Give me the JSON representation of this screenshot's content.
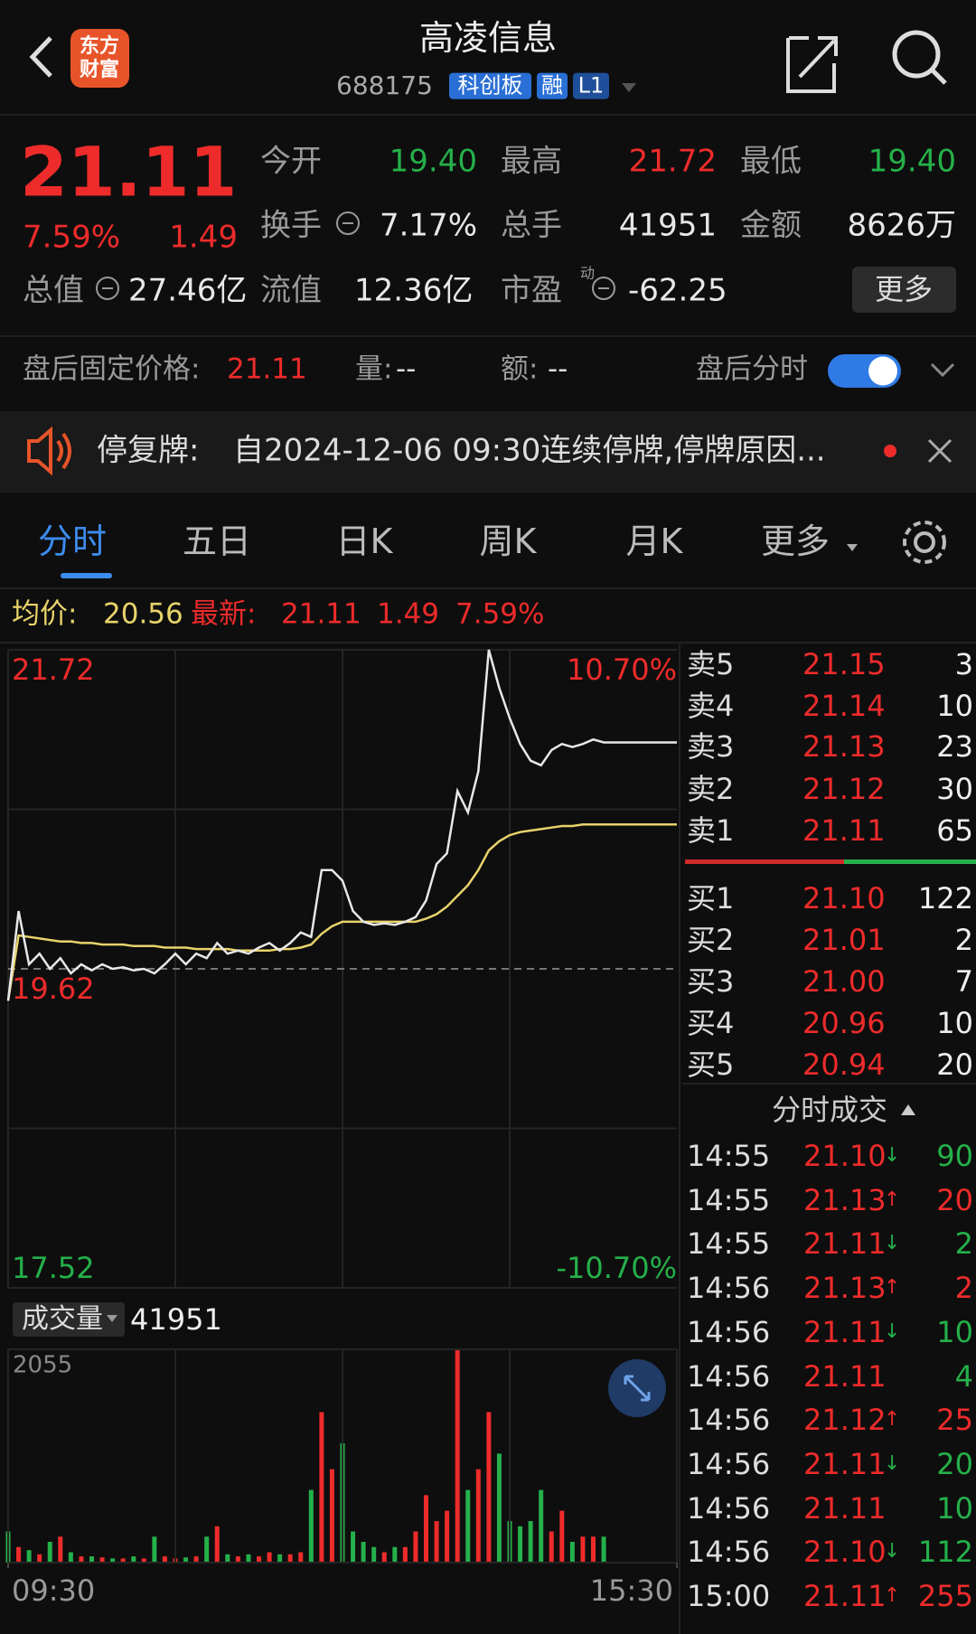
{
  "header": {
    "logo": [
      "东方",
      "财富"
    ],
    "title": "高凌信息",
    "code": "688175",
    "tags": [
      "科创板",
      "融",
      "L1"
    ]
  },
  "quote": {
    "price": "21.11",
    "change_pct": "7.59%",
    "change": "1.49",
    "rows": [
      [
        {
          "label": "今开",
          "value": "19.40",
          "color": "#25b04a"
        },
        {
          "label": "最高",
          "value": "21.72",
          "color": "#ee2b2b"
        },
        {
          "label": "最低",
          "value": "19.40",
          "color": "#25b04a"
        }
      ],
      [
        {
          "label": "换手",
          "value": "7.17%"
        },
        {
          "label": "总手",
          "value": "41951"
        },
        {
          "label": "金额",
          "value": "8626万"
        }
      ],
      [
        {
          "label": "总值",
          "value": "27.46亿"
        },
        {
          "label": "流值",
          "value": "12.36亿"
        },
        {
          "label": "市盈",
          "label_sup": "动",
          "value": "-62.25"
        }
      ]
    ],
    "more": "更多"
  },
  "after_hours": {
    "label": "盘后固定价格:",
    "price": "21.11",
    "volume_label": "量:",
    "volume": "--",
    "amount_label": "额:",
    "amount": "--",
    "toggle_label": "盘后分时"
  },
  "notice": {
    "label": "停复牌:",
    "text": "自2024-12-06 09:30连续停牌,停牌原因..."
  },
  "tabs": [
    "分时",
    "五日",
    "日K",
    "周K",
    "月K",
    "更多"
  ],
  "summary": {
    "avg": "20.56",
    "latest": "21.11",
    "change": "1.49",
    "change_pct": "7.59%"
  },
  "chart_data": [
    {
      "type": "line",
      "ylim": [
        17.52,
        21.72
      ],
      "yticks": [
        17.52,
        19.62,
        21.72
      ],
      "y2lim": [
        -10.7,
        10.7
      ],
      "y2ticks": [
        {
          "value": -10.7,
          "label": "-10.70%"
        },
        {
          "value": 10.7,
          "label": "10.70%"
        }
      ],
      "xlim": [
        0,
        64
      ],
      "series": [
        {
          "name": "最新:",
          "color": "#e8e8e8",
          "values": [
            19.41,
            20.0,
            19.65,
            19.72,
            19.62,
            19.69,
            19.59,
            19.65,
            19.61,
            19.65,
            19.62,
            19.63,
            19.61,
            19.62,
            19.59,
            19.65,
            19.72,
            19.65,
            19.72,
            19.69,
            19.79,
            19.72,
            19.74,
            19.72,
            19.76,
            19.79,
            19.74,
            19.79,
            19.86,
            19.83,
            20.27,
            20.27,
            20.2,
            20.0,
            19.93,
            19.91,
            19.92,
            19.91,
            19.93,
            19.96,
            20.07,
            20.31,
            20.38,
            20.79,
            20.65,
            20.92,
            21.72,
            21.47,
            21.27,
            21.1,
            20.99,
            20.96,
            21.06,
            21.1,
            21.08,
            21.1,
            21.13,
            21.11,
            21.11,
            21.11,
            21.11,
            21.11,
            21.11,
            21.11,
            21.11
          ]
        },
        {
          "name": "均价:",
          "color": "#e8d36b",
          "values": [
            19.41,
            19.84,
            19.83,
            19.82,
            19.81,
            19.8,
            19.8,
            19.79,
            19.79,
            19.78,
            19.78,
            19.78,
            19.77,
            19.77,
            19.77,
            19.76,
            19.76,
            19.76,
            19.75,
            19.75,
            19.75,
            19.75,
            19.74,
            19.74,
            19.74,
            19.74,
            19.75,
            19.75,
            19.76,
            19.78,
            19.85,
            19.9,
            19.93,
            19.93,
            19.93,
            19.93,
            19.93,
            19.93,
            19.93,
            19.93,
            19.95,
            19.98,
            20.03,
            20.1,
            20.17,
            20.27,
            20.4,
            20.46,
            20.5,
            20.52,
            20.53,
            20.54,
            20.55,
            20.56,
            20.56,
            20.57,
            20.57,
            20.57,
            20.57,
            20.57,
            20.57,
            20.57,
            20.57,
            20.57,
            20.57
          ]
        }
      ]
    },
    {
      "type": "bar",
      "title": "成交量",
      "total": "41951",
      "ylim": [
        0,
        2055
      ],
      "yticks": [
        2055
      ],
      "xlim": [
        0,
        64
      ],
      "xticks": [
        {
          "value": 0,
          "label": "09:30"
        },
        {
          "value": 64,
          "label": "15:30"
        }
      ],
      "up_color": "#ee2b2b",
      "down_color": "#25b04a",
      "values": [
        300,
        150,
        120,
        80,
        200,
        250,
        100,
        60,
        60,
        50,
        40,
        40,
        60,
        40,
        250,
        60,
        40,
        50,
        60,
        250,
        350,
        80,
        60,
        80,
        60,
        100,
        80,
        80,
        100,
        700,
        1450,
        900,
        1150,
        300,
        200,
        150,
        100,
        150,
        150,
        300,
        650,
        400,
        500,
        2055,
        700,
        900,
        1450,
        1050,
        400,
        350,
        400,
        700,
        300,
        500,
        200,
        250,
        250,
        250
      ]
    }
  ],
  "order_book": {
    "asks": [
      {
        "label": "卖5",
        "price": "21.15",
        "volume": "3"
      },
      {
        "label": "卖4",
        "price": "21.14",
        "volume": "10"
      },
      {
        "label": "卖3",
        "price": "21.13",
        "volume": "23"
      },
      {
        "label": "卖2",
        "price": "21.12",
        "volume": "30"
      },
      {
        "label": "卖1",
        "price": "21.11",
        "volume": "65"
      }
    ],
    "bids": [
      {
        "label": "买1",
        "price": "21.10",
        "volume": "122"
      },
      {
        "label": "买2",
        "price": "21.01",
        "volume": "2"
      },
      {
        "label": "买3",
        "price": "21.00",
        "volume": "7"
      },
      {
        "label": "买4",
        "price": "20.96",
        "volume": "10"
      },
      {
        "label": "买5",
        "price": "20.94",
        "volume": "20"
      }
    ]
  },
  "trades": {
    "title": "分时成交",
    "rows": [
      {
        "time": "14:55",
        "price": "21.10",
        "dir": "↓",
        "volume": "90"
      },
      {
        "time": "14:55",
        "price": "21.13",
        "dir": "↑",
        "volume": "20"
      },
      {
        "time": "14:55",
        "price": "21.11",
        "dir": "↓",
        "volume": "2"
      },
      {
        "time": "14:56",
        "price": "21.13",
        "dir": "↑",
        "volume": "2"
      },
      {
        "time": "14:56",
        "price": "21.11",
        "dir": "↓",
        "volume": "10"
      },
      {
        "time": "14:56",
        "price": "21.11",
        "volume": "4"
      },
      {
        "time": "14:56",
        "price": "21.12",
        "dir": "↑",
        "volume": "25"
      },
      {
        "time": "14:56",
        "price": "21.11",
        "dir": "↓",
        "volume": "20"
      },
      {
        "time": "14:56",
        "price": "21.11",
        "volume": "10"
      },
      {
        "time": "14:56",
        "price": "21.10",
        "dir": "↓",
        "volume": "112"
      },
      {
        "time": "15:00",
        "price": "21.11",
        "dir": "↑",
        "volume": "255"
      }
    ]
  }
}
